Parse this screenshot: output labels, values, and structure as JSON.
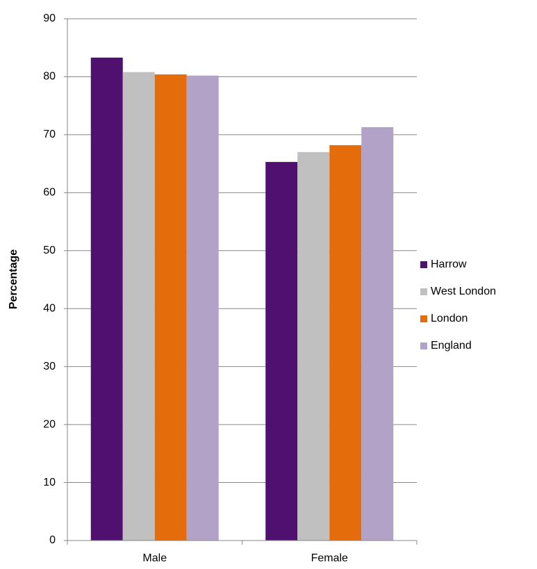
{
  "chart_data": {
    "type": "bar",
    "y_label": "Percentage",
    "categories": [
      "Male",
      "Female"
    ],
    "series": [
      {
        "name": "Harrow",
        "color": "#4f1070",
        "values": [
          83.3,
          65.3
        ]
      },
      {
        "name": "West London",
        "color": "#c0c0c0",
        "values": [
          80.8,
          67.0
        ]
      },
      {
        "name": "London",
        "color": "#e46c0a",
        "values": [
          80.4,
          68.2
        ]
      },
      {
        "name": "England",
        "color": "#b3a2c7",
        "values": [
          80.2,
          71.3
        ]
      }
    ],
    "ylim": [
      0,
      90
    ],
    "yticks": [
      0,
      10,
      20,
      30,
      40,
      50,
      60,
      70,
      80,
      90
    ],
    "grid": true,
    "legend": "right"
  }
}
